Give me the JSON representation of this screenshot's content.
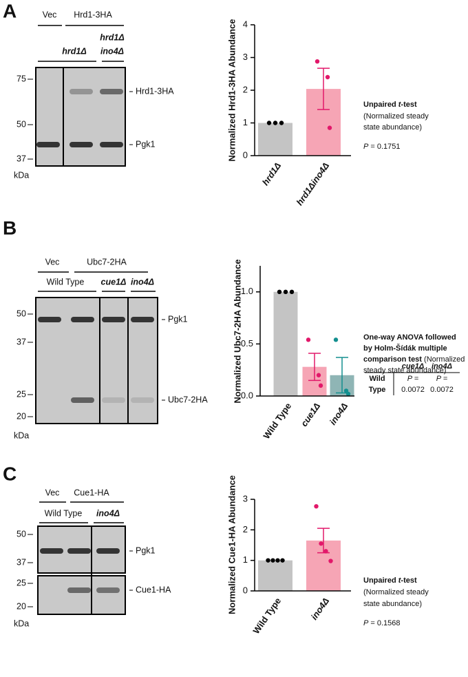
{
  "figure": {
    "panels": [
      {
        "letter": "A",
        "top_labels": [
          "Vec",
          "Hrd1-3HA"
        ],
        "sub_labels": [
          {
            "text": "hrd1Δ",
            "italic": true
          },
          {
            "text": "hrd1Δ",
            "italic": true
          },
          {
            "text": "ino4Δ",
            "italic": true
          }
        ],
        "mw": [
          "75",
          "50",
          "37"
        ],
        "unit": "kDa",
        "bands": [
          "Hrd1-3HA",
          "Pgk1"
        ],
        "stats": [
          [
            {
              "text": "Unpaired ",
              "bold": true
            },
            {
              "text": "t",
              "bold": true,
              "italic": true
            },
            {
              "text": "-test",
              "bold": true
            }
          ],
          [
            {
              "text": "(Normalized steady"
            }
          ],
          [
            {
              "text": "state abundance)"
            }
          ],
          [
            {
              "text": "P",
              "italic": true
            },
            {
              "text": " = 0.1751"
            }
          ]
        ]
      },
      {
        "letter": "B",
        "top_labels": [
          "Vec",
          "Ubc7-2HA"
        ],
        "sub_labels": [
          {
            "text": "Wild Type",
            "italic": false
          },
          {
            "text": "cue1Δ",
            "italic": true
          },
          {
            "text": "ino4Δ",
            "italic": true
          }
        ],
        "mw": [
          "50",
          "37",
          "25",
          "20"
        ],
        "unit": "kDa",
        "bands": [
          "Pgk1",
          "Ubc7-2HA"
        ],
        "stats": [
          [
            {
              "text": "One-way ANOVA followed",
              "bold": true
            }
          ],
          [
            {
              "text": "by Holm-Šídák multiple",
              "bold": true
            }
          ],
          [
            {
              "text": "comparison test",
              "bold": true
            },
            {
              "text": " (Normalized"
            }
          ],
          [
            {
              "text": "steady state abundance)"
            }
          ]
        ],
        "table": {
          "columns": [
            "cue1Δ",
            "ino4Δ"
          ],
          "row_label": [
            "Wild",
            "Type"
          ],
          "cells": [
            [
              "P =",
              "0.0072"
            ],
            [
              "P =",
              "0.0072"
            ]
          ]
        }
      },
      {
        "letter": "C",
        "top_labels": [
          "Vec",
          "Cue1-HA"
        ],
        "sub_labels": [
          {
            "text": "Wild Type",
            "italic": false
          },
          {
            "text": "ino4Δ",
            "italic": true
          }
        ],
        "mw": [
          "50",
          "37",
          "25",
          "20"
        ],
        "unit": "kDa",
        "bands": [
          "Pgk1",
          "Cue1-HA"
        ],
        "stats": [
          [
            {
              "text": "Unpaired ",
              "bold": true
            },
            {
              "text": "t",
              "bold": true,
              "italic": true
            },
            {
              "text": "-test",
              "bold": true
            }
          ],
          [
            {
              "text": "(Normalized steady"
            }
          ],
          [
            {
              "text": "state abundance)"
            }
          ],
          [
            {
              "text": "P",
              "italic": true
            },
            {
              "text": " = 0.1568"
            }
          ]
        ]
      }
    ]
  },
  "chart_data": [
    {
      "type": "bar",
      "y_label": "Normalized Hrd1-3HA Abundance",
      "categories": [
        "hrd1Δ",
        "hrd1Δino4Δ"
      ],
      "category_italic": [
        true,
        true
      ],
      "values": [
        1.0,
        2.04
      ],
      "errors": [
        0,
        0.63
      ],
      "points": [
        [
          1,
          1,
          1
        ],
        [
          2.88,
          2.4,
          0.85
        ]
      ],
      "colors": [
        "#c4c4c4",
        "#f6a5b5"
      ],
      "point_colors": [
        "#000000",
        "#e2186a"
      ],
      "ylim": [
        0,
        4
      ],
      "yticks": [
        0,
        1,
        2,
        3,
        4
      ]
    },
    {
      "type": "bar",
      "y_label": "Normalized Ubc7-2HA Abundance",
      "categories": [
        "Wild Type",
        "cue1Δ",
        "ino4Δ"
      ],
      "category_italic": [
        false,
        true,
        true
      ],
      "values": [
        1.0,
        0.28,
        0.2
      ],
      "errors": [
        0,
        0.13,
        0.17
      ],
      "points": [
        [
          1,
          1,
          1
        ],
        [
          0.54,
          0.2,
          0.1
        ],
        [
          0.54,
          0.05,
          0.02
        ]
      ],
      "colors": [
        "#c4c4c4",
        "#f6a5b5",
        "#8fb5b5"
      ],
      "point_colors": [
        "#000000",
        "#e2186a",
        "#138f8f"
      ],
      "ylim": [
        0,
        1.25
      ],
      "yticks": [
        {
          "value": 0,
          "label": "0.0"
        },
        {
          "value": 0.5,
          "label": "0.5"
        },
        {
          "value": 1,
          "label": "1.0"
        }
      ]
    },
    {
      "type": "bar",
      "y_label": "Normalized Cue1-HA Abundance",
      "categories": [
        "Wild Type",
        "ino4Δ"
      ],
      "category_italic": [
        false,
        true
      ],
      "values": [
        1.0,
        1.65
      ],
      "errors": [
        0,
        0.4
      ],
      "points": [
        [
          1,
          1,
          1,
          1
        ],
        [
          2.77,
          1.55,
          1.3,
          0.98
        ]
      ],
      "colors": [
        "#c4c4c4",
        "#f6a5b5"
      ],
      "point_colors": [
        "#000000",
        "#e2186a"
      ],
      "ylim": [
        0,
        3
      ],
      "yticks": [
        0,
        1,
        2,
        3
      ]
    }
  ]
}
